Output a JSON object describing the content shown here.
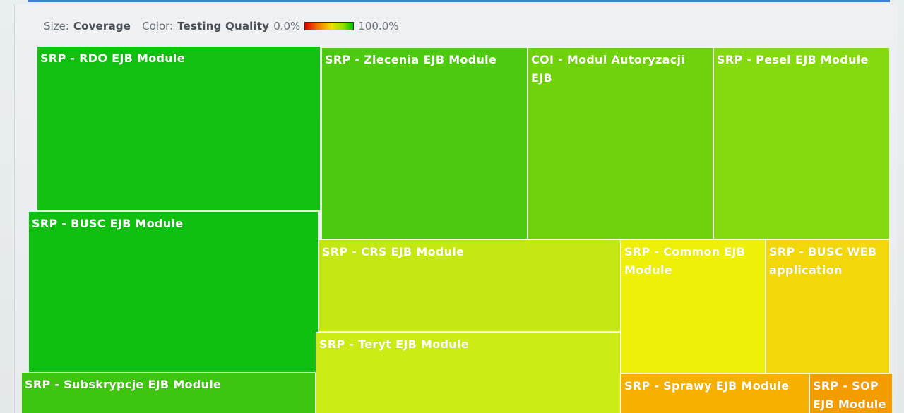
{
  "legend": {
    "size_label": "Size:",
    "size_value": "Coverage",
    "color_label": "Color:",
    "color_value": "Testing Quality",
    "min_label": "0.0%",
    "max_label": "100.0%"
  },
  "chart_data": {
    "type": "treemap",
    "size_metric": "Coverage",
    "color_metric": "Testing Quality",
    "color_range": [
      0.0,
      100.0
    ],
    "color_scale": [
      "#e00000",
      "#f07000",
      "#f0e000",
      "#90e000",
      "#00c000"
    ],
    "nodes": [
      {
        "label": "SRP - RDO EJB Module",
        "color": "#12c012"
      },
      {
        "label": "SRP - Zlecenia EJB Module",
        "color": "#4dc90f"
      },
      {
        "label": "COI - Modul Autoryzacji EJB",
        "color": "#6fd20a"
      },
      {
        "label": "SRP - Pesel EJB Module",
        "color": "#85d90f"
      },
      {
        "label": "SRP - BUSC EJB Module",
        "color": "#10c010"
      },
      {
        "label": "SRP - CRS EJB Module",
        "color": "#c6e812"
      },
      {
        "label": "SRP - Common EJB Module",
        "color": "#eef008"
      },
      {
        "label": "SRP - BUSC WEB application",
        "color": "#f2d80a"
      },
      {
        "label": "SRP - Teryt EJB Module",
        "color": "#cdec16"
      },
      {
        "label": "SRP - Subskrypcje EJB Module",
        "color": "#3ec510"
      },
      {
        "label": "SRP - Sprawy EJB Module",
        "color": "#f5b000"
      },
      {
        "label": "SRP - SOP EJB Module",
        "color": "#f39c00"
      }
    ]
  }
}
